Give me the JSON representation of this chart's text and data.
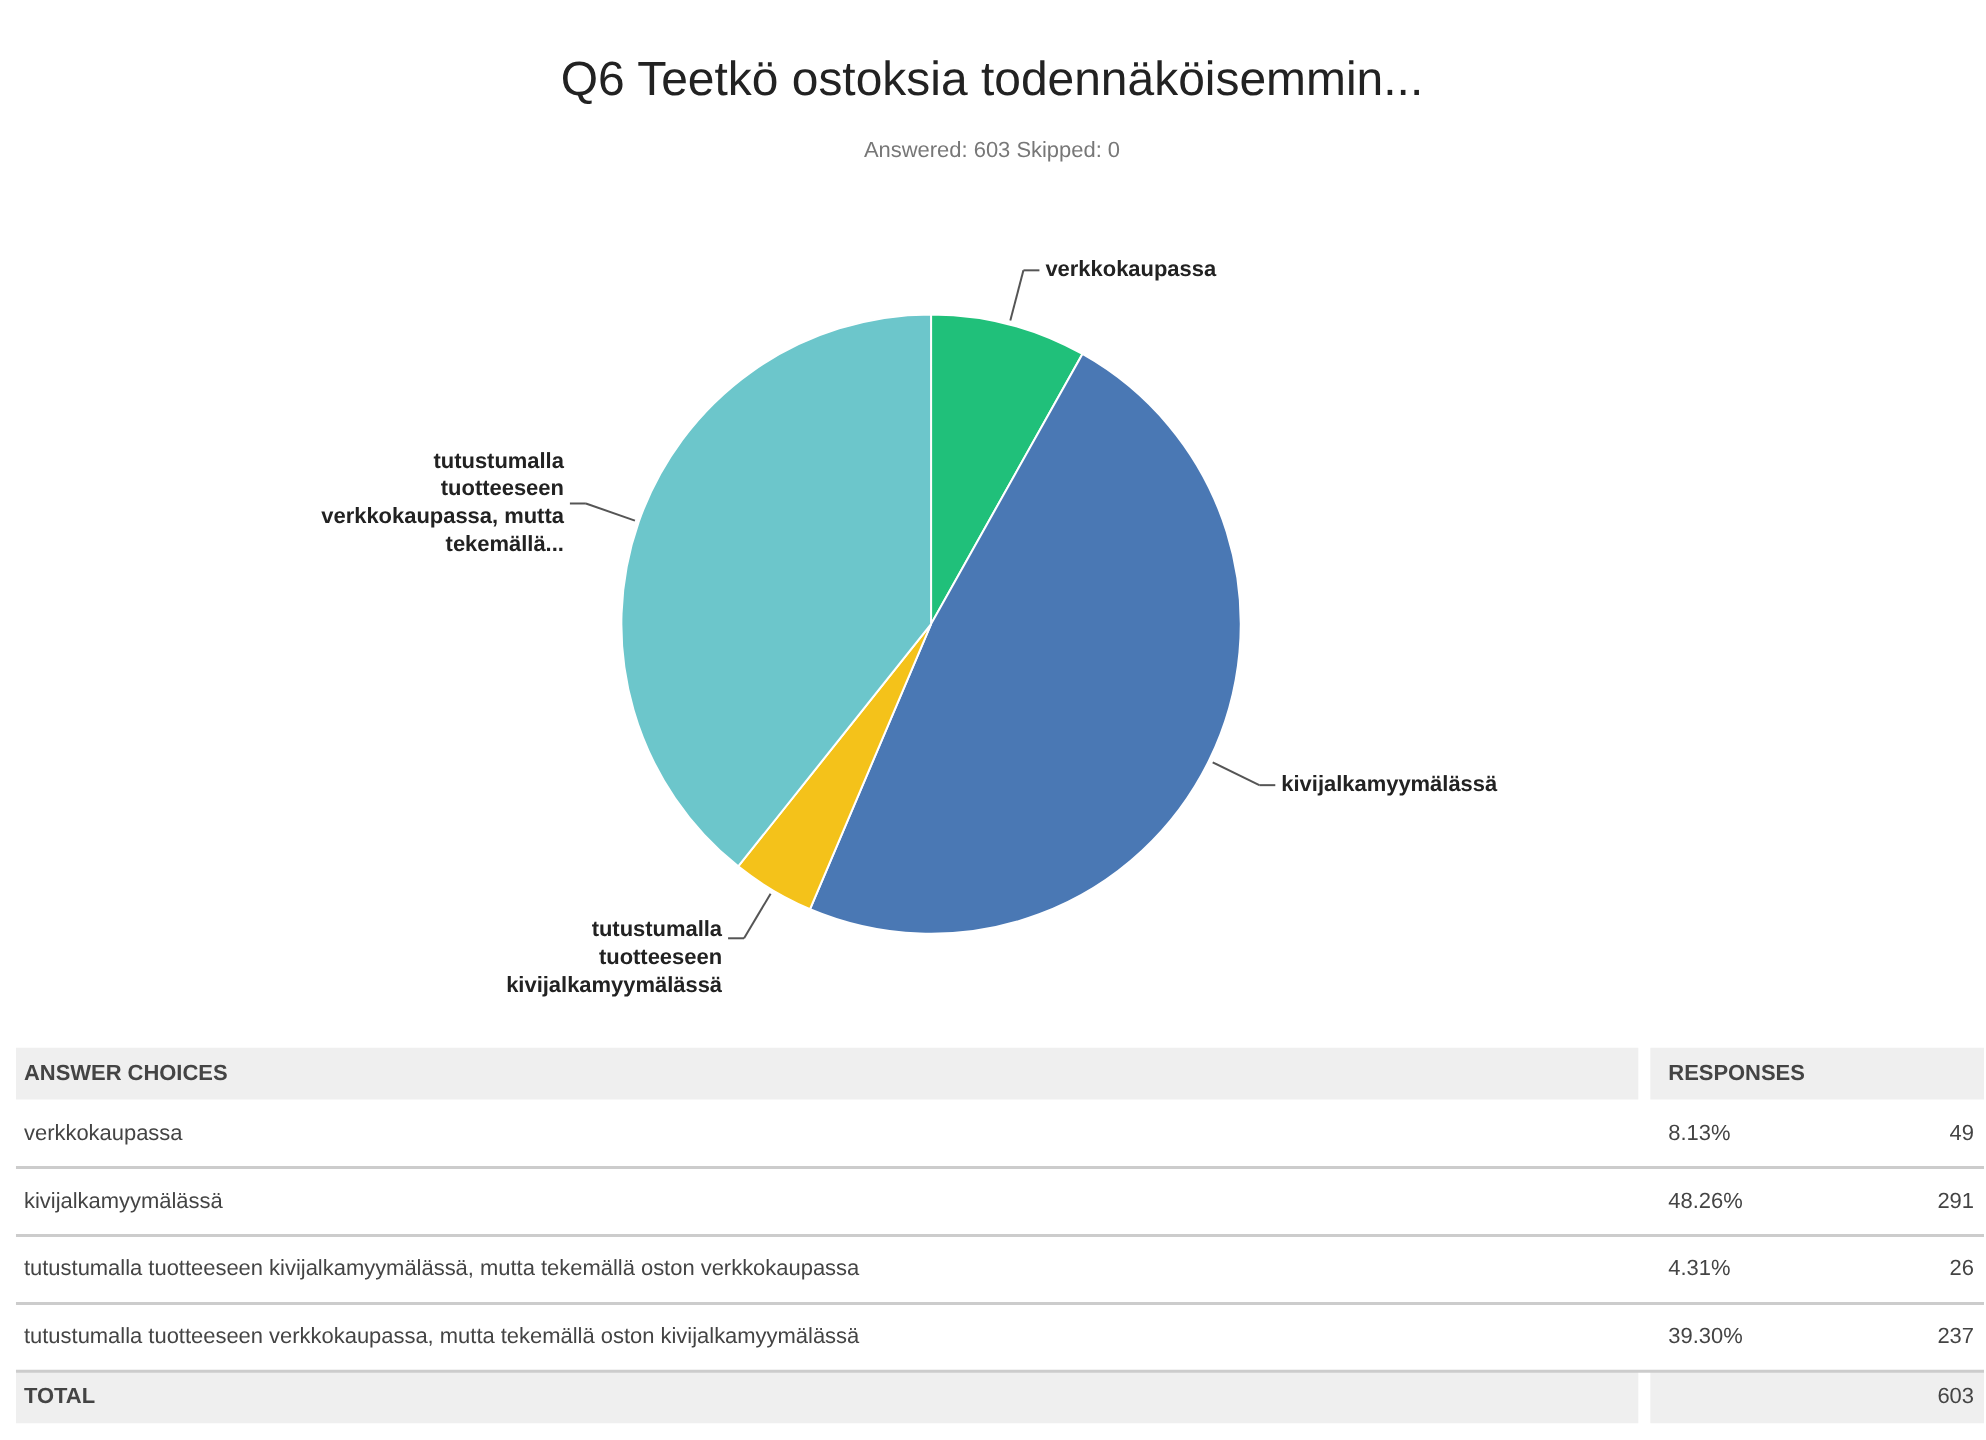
{
  "chart_data": [
    {
      "type": "pie",
      "title": "Q6 Teetkö ostoksia todennäköisemmin...",
      "subtitle": "Answered: 603    Skipped: 0",
      "categories": [
        "verkkokaupassa",
        "kivijalkamyymälässä",
        "tutustumalla tuotteeseen kivijalkamyymälässä",
        "tutustumalla tuotteeseen verkkokaupassa, mutta tekemällä..."
      ],
      "values": [
        8.13,
        48.26,
        4.31,
        39.3
      ],
      "colors": [
        "#20c07a",
        "#4a78b4",
        "#f4c21a",
        "#6cc6cb"
      ]
    },
    {
      "type": "other",
      "categories": [
        "verkkokaupassa",
        "kivijalkamyymälässä",
        "tutustumalla tuotteeseen kivijalkamyymälässä, mutta tekemällä oston verkkokaupassa",
        "tutustumalla tuotteeseen verkkokaupassa, mutta tekemällä oston kivijalkamyymälässä"
      ],
      "series": [
        {
          "values": [
            8.13,
            48.26,
            4.31,
            39.3
          ],
          "value_labels": [
            "8.13%",
            "48.26%",
            "4.31%",
            "39.30%"
          ]
        },
        {
          "values": [
            49,
            291,
            26,
            237
          ],
          "data_labels": true
        }
      ],
      "totals": [
        "603"
      ],
      "annotations": [
        "ANSWER CHOICES",
        "RESPONSES",
        "TOTAL"
      ]
    }
  ]
}
